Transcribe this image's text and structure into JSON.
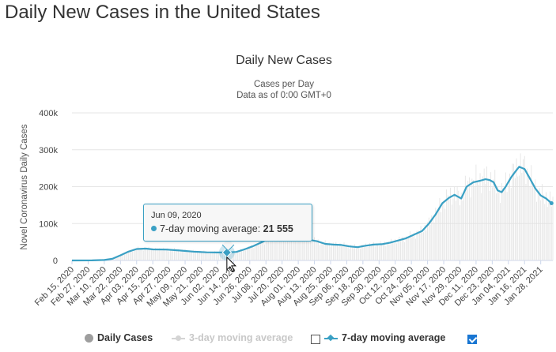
{
  "page": {
    "title": "Daily New Cases in the United States"
  },
  "chart_data": {
    "type": "line",
    "title": "Daily New Cases",
    "subtitle_line1": "Cases per Day",
    "subtitle_line2": "Data as of 0:00 GMT+0",
    "ylabel": "Novel Coronavirus Daily Cases",
    "xlabel": "",
    "ylim": [
      0,
      400000
    ],
    "yticks": [
      0,
      100000,
      200000,
      300000,
      400000
    ],
    "ytick_labels": [
      "0",
      "100k",
      "200k",
      "300k",
      "400k"
    ],
    "x_start": "2020-02-15",
    "x_end": "2021-02-06",
    "xtick_labels": [
      "Feb 15, 2020",
      "Feb 27, 2020",
      "Mar 10, 2020",
      "Mar 22, 2020",
      "Apr 03, 2020",
      "Apr 15, 2020",
      "Apr 27, 2020",
      "May 09, 2020",
      "May 21, 2020",
      "Jun 02, 2020",
      "Jun 14, 2020",
      "Jun 26, 2020",
      "Jul 08, 2020",
      "Jul 20, 2020",
      "Aug 01, 2020",
      "Aug 13, 2020",
      "Aug 25, 2020",
      "Sep 06, 2020",
      "Sep 18, 2020",
      "Sep 30, 2020",
      "Oct 12, 2020",
      "Oct 24, 2020",
      "Nov 05, 2020",
      "Nov 17, 2020",
      "Nov 29, 2020",
      "Dec 11, 2020",
      "Dec 23, 2020",
      "Jan 04, 2021",
      "Jan 16, 2021",
      "Jan 28, 2021"
    ],
    "grid": true,
    "legend_placement": "bottom",
    "colors": {
      "moving_avg_7": "#3aa0c4",
      "daily_bars": "#e2e2e2",
      "three_day": "#d4d4d4"
    },
    "series": [
      {
        "name": "7-day moving average",
        "x": [
          "2020-02-15",
          "2020-03-01",
          "2020-03-10",
          "2020-03-16",
          "2020-03-22",
          "2020-03-28",
          "2020-04-03",
          "2020-04-10",
          "2020-04-15",
          "2020-04-25",
          "2020-05-05",
          "2020-05-15",
          "2020-05-25",
          "2020-06-02",
          "2020-06-09",
          "2020-06-16",
          "2020-06-22",
          "2020-06-28",
          "2020-07-04",
          "2020-07-10",
          "2020-07-16",
          "2020-07-22",
          "2020-07-28",
          "2020-08-03",
          "2020-08-09",
          "2020-08-15",
          "2020-08-21",
          "2020-08-27",
          "2020-09-02",
          "2020-09-08",
          "2020-09-14",
          "2020-09-20",
          "2020-09-26",
          "2020-10-02",
          "2020-10-08",
          "2020-10-14",
          "2020-10-20",
          "2020-10-26",
          "2020-11-01",
          "2020-11-06",
          "2020-11-11",
          "2020-11-16",
          "2020-11-21",
          "2020-11-25",
          "2020-11-30",
          "2020-12-04",
          "2020-12-09",
          "2020-12-14",
          "2020-12-18",
          "2020-12-21",
          "2020-12-24",
          "2020-12-27",
          "2020-12-30",
          "2021-01-02",
          "2021-01-06",
          "2021-01-09",
          "2021-01-12",
          "2021-01-16",
          "2021-01-20",
          "2021-01-24",
          "2021-01-28",
          "2021-02-01",
          "2021-02-05"
        ],
        "values": [
          20,
          300,
          1200,
          4500,
          14000,
          24000,
          31000,
          32000,
          30000,
          29500,
          27000,
          24000,
          22000,
          21500,
          21555,
          23000,
          30000,
          38000,
          48000,
          58000,
          63000,
          66000,
          66000,
          62000,
          56000,
          52000,
          45000,
          43000,
          42000,
          38000,
          36000,
          40000,
          43000,
          44000,
          48000,
          54000,
          60000,
          70000,
          80000,
          100000,
          125000,
          155000,
          170000,
          178000,
          168000,
          200000,
          212000,
          216000,
          220000,
          218000,
          212000,
          190000,
          185000,
          200000,
          225000,
          240000,
          254000,
          248000,
          222000,
          195000,
          176000,
          168000,
          155000
        ]
      }
    ],
    "tooltip": {
      "date": "Jun 09, 2020",
      "series_name": "7-day moving average",
      "value": "21 555",
      "x": "2020-06-09",
      "y": 21555
    }
  },
  "legend": {
    "daily_label": "Daily Cases",
    "three_day_label": "3-day moving average",
    "seven_day_label": "7-day moving average",
    "three_day_checked": false,
    "seven_day_checked": true
  }
}
